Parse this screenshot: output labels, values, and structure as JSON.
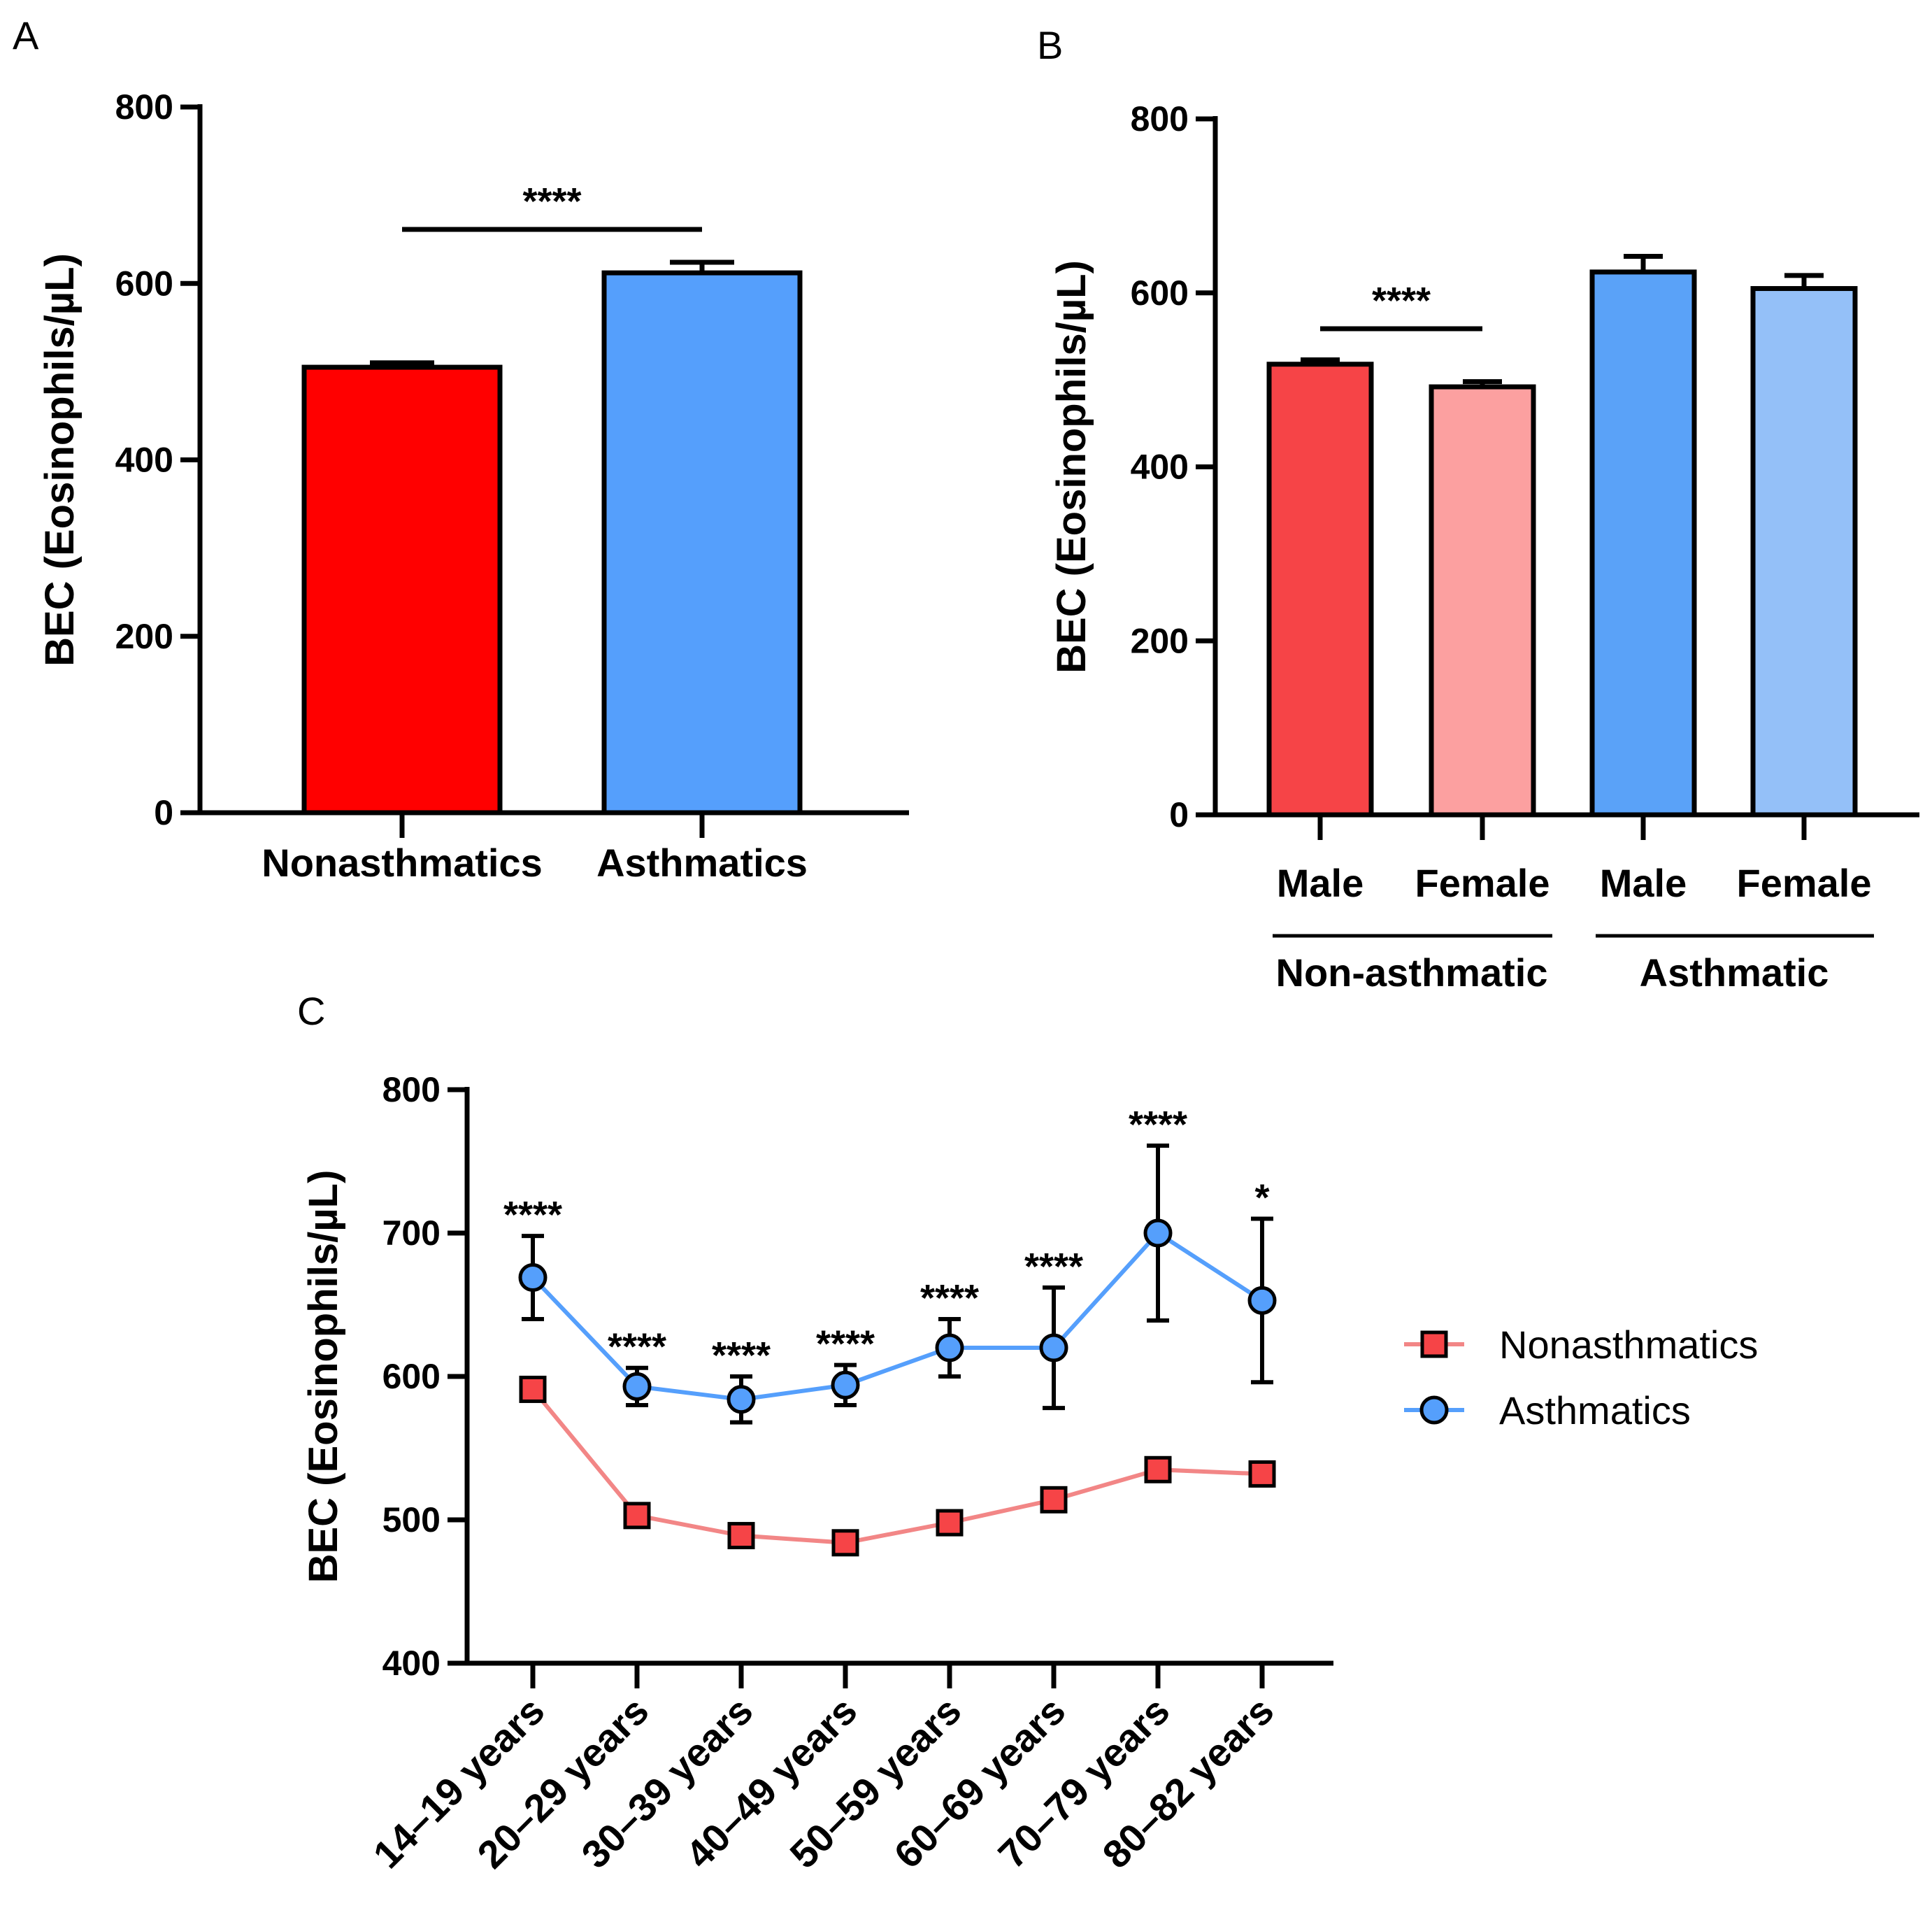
{
  "chart_data": [
    {
      "panel": "A",
      "type": "bar",
      "ylabel": "BEC (Eosinophils/µL)",
      "ylim": [
        0,
        800
      ],
      "yticks": [
        0,
        200,
        400,
        600,
        800
      ],
      "categories": [
        "Nonasthmatics",
        "Asthmatics"
      ],
      "values": [
        505,
        612
      ],
      "errors": [
        5,
        12
      ],
      "colors": [
        "#ff0000",
        "#559ffc"
      ],
      "significance": [
        {
          "label": "****",
          "from": 0,
          "to": 1
        }
      ]
    },
    {
      "panel": "B",
      "type": "bar",
      "ylabel": "BEC (Eosinophils/µL)",
      "ylim": [
        0,
        800
      ],
      "yticks": [
        0,
        200,
        400,
        600,
        800
      ],
      "categories": [
        "Male",
        "Female",
        "Male",
        "Female"
      ],
      "values": [
        518,
        492,
        624,
        605
      ],
      "errors": [
        5,
        6,
        18,
        15
      ],
      "colors": [
        "#f64447",
        "#fca0a0",
        "#5aa2f8",
        "#94c0f8"
      ],
      "groups": [
        {
          "label": "Non-asthmatic",
          "from": 0,
          "to": 1
        },
        {
          "label": "Asthmatic",
          "from": 2,
          "to": 3
        }
      ],
      "significance": [
        {
          "label": "****",
          "from": 0,
          "to": 1
        }
      ]
    },
    {
      "panel": "C",
      "type": "line",
      "ylabel": "BEC (Eosinophils/µL)",
      "ylim": [
        400,
        800
      ],
      "yticks": [
        400,
        500,
        600,
        700,
        800
      ],
      "categories": [
        "14–19 years",
        "20–29 years",
        "30–39 years",
        "40–49 years",
        "50–59 years",
        "60–69 years",
        "70–79 years",
        "80–82 years"
      ],
      "series": [
        {
          "name": "Nonasthmatics",
          "marker": "square",
          "line_color": "#f28686",
          "marker_color": "#f64447",
          "values": [
            591,
            503,
            489,
            484,
            498,
            514,
            535,
            532
          ],
          "errors": [
            6,
            5,
            5,
            4,
            5,
            6,
            6,
            8
          ]
        },
        {
          "name": "Asthmatics",
          "marker": "circle",
          "line_color": "#559ffc",
          "marker_color": "#559ffc",
          "values": [
            669,
            593,
            584,
            594,
            620,
            620,
            700,
            653
          ],
          "errors": [
            29,
            13,
            16,
            14,
            20,
            42,
            61,
            57
          ]
        }
      ],
      "significance": [
        "****",
        "****",
        "****",
        "****",
        "****",
        "****",
        "****",
        "*"
      ]
    }
  ],
  "panels": {
    "a": "A",
    "b": "B",
    "c": "C"
  }
}
